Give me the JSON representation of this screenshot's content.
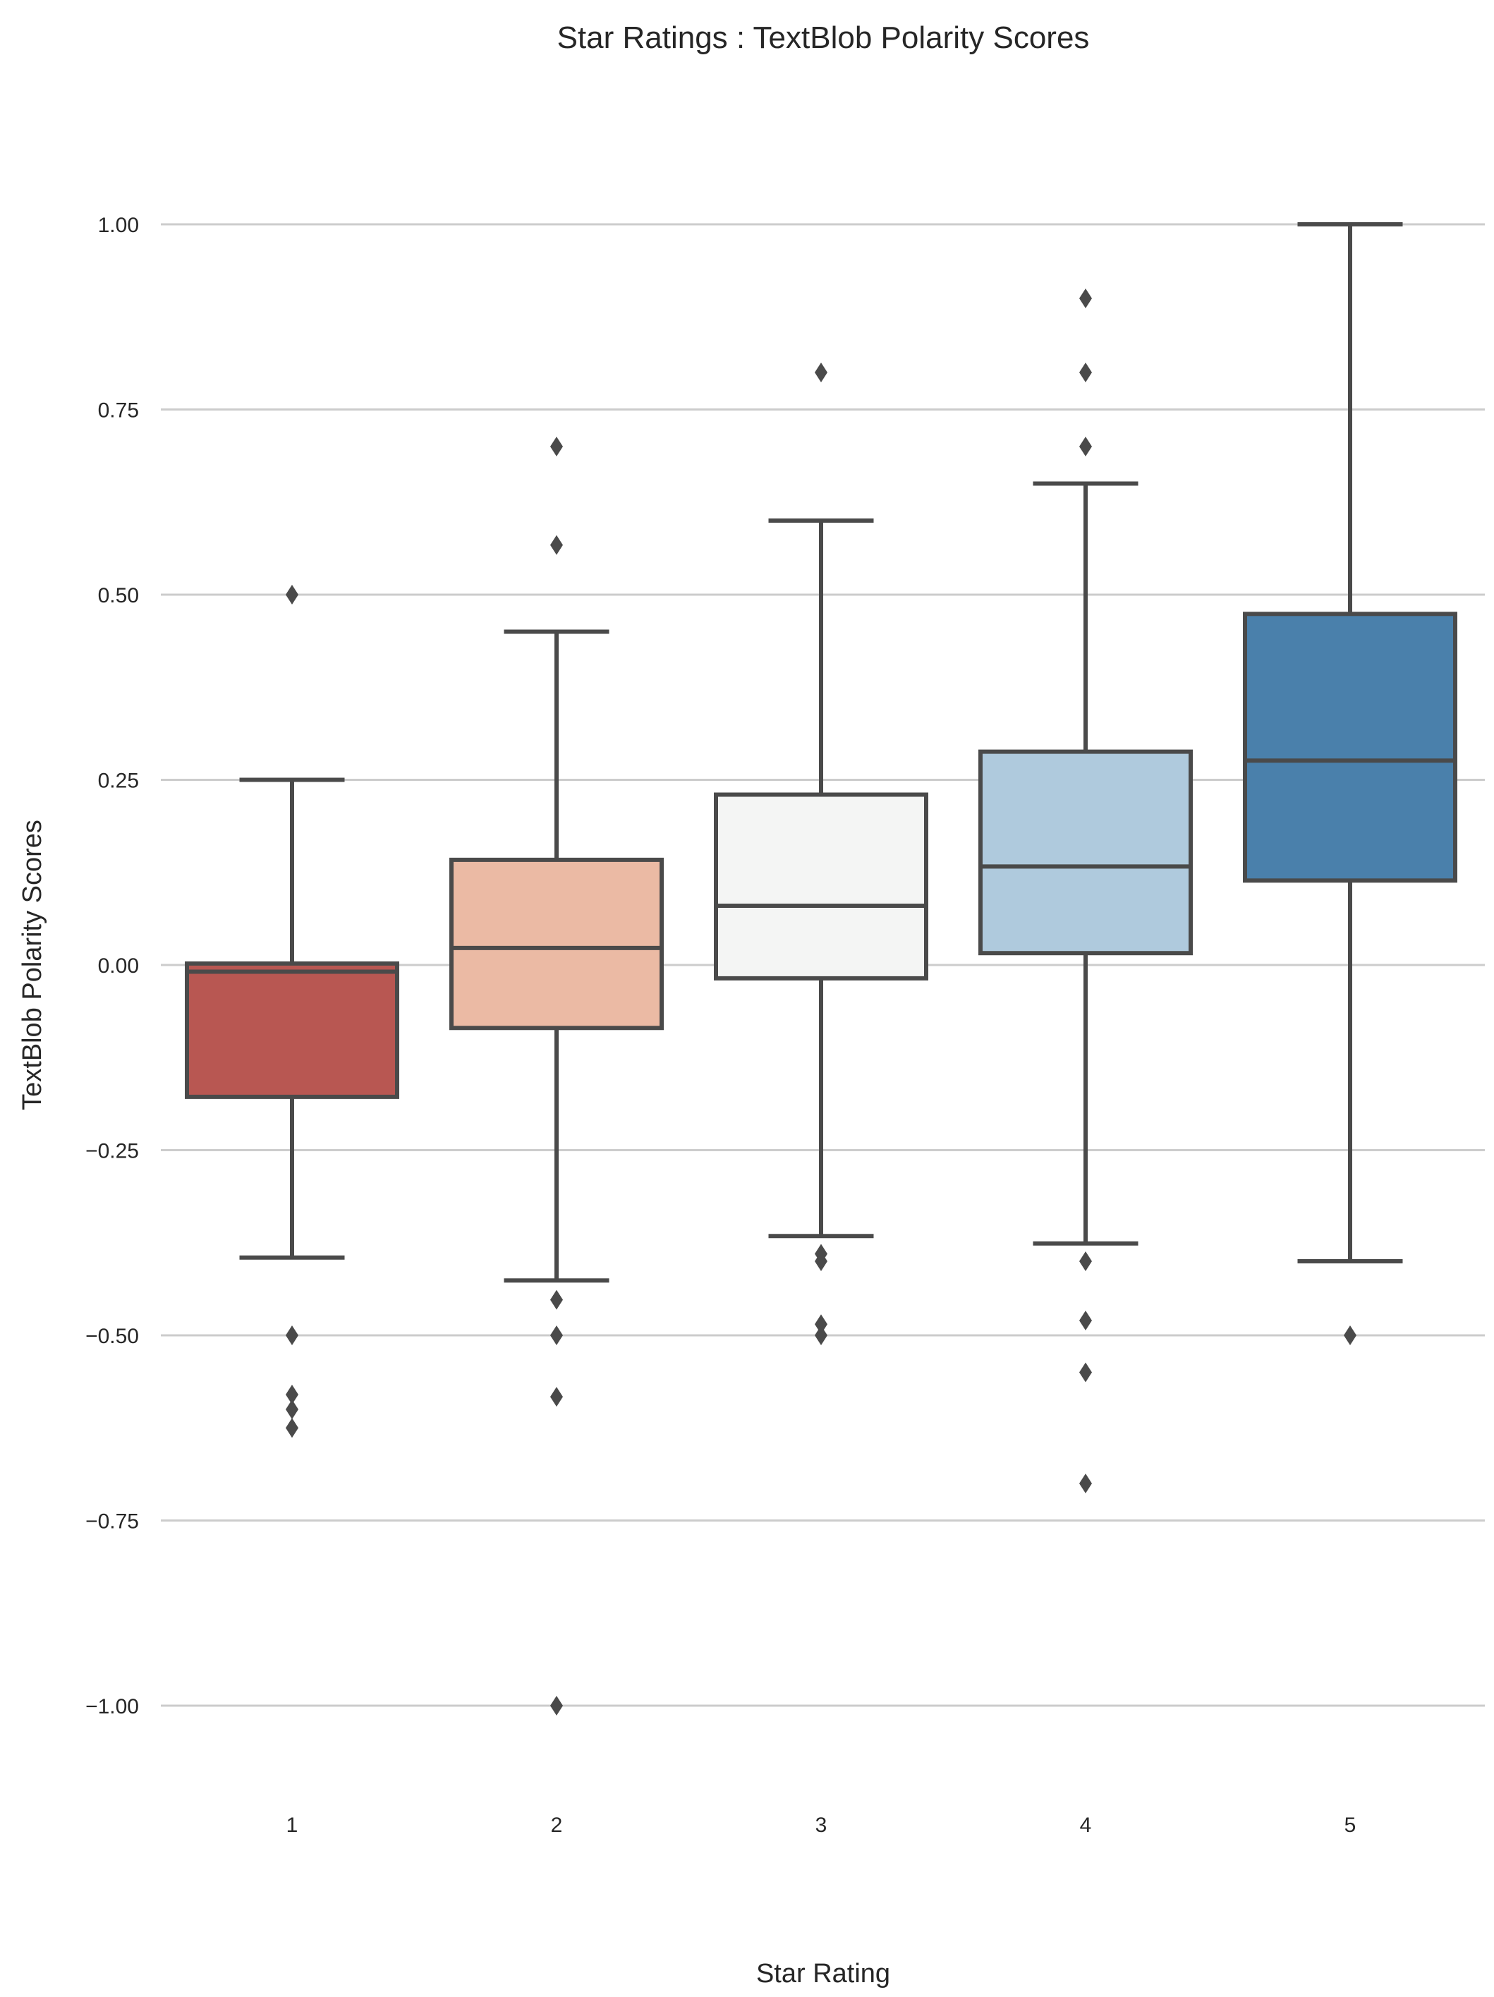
{
  "chart_data": {
    "type": "box",
    "title": "Star Ratings : TextBlob Polarity Scores",
    "xlabel": "Star Rating",
    "ylabel": "TextBlob Polarity Scores",
    "ylim": [
      -1.1,
      1.1
    ],
    "grid": "horizontal",
    "yticks": [
      "1.00",
      "0.75",
      "0.50",
      "0.25",
      "0.00",
      "−0.25",
      "−0.50",
      "−0.75",
      "−1.00"
    ],
    "ytick_values": [
      1.0,
      0.75,
      0.5,
      0.25,
      0.0,
      -0.25,
      -0.5,
      -0.75,
      -1.0
    ],
    "categories": [
      "1",
      "2",
      "3",
      "4",
      "5"
    ],
    "boxes": [
      {
        "category": "1",
        "whislo": -0.395,
        "q1": -0.178,
        "median": -0.009,
        "q3": 0.002,
        "whishi": 0.25,
        "fliers": [
          0.5,
          -0.5,
          -0.58,
          -0.6,
          -0.625
        ],
        "color": "#b85752"
      },
      {
        "category": "2",
        "whislo": -0.426,
        "q1": -0.085,
        "median": 0.023,
        "q3": 0.142,
        "whishi": 0.45,
        "fliers": [
          0.7,
          0.567,
          -0.452,
          -0.5,
          -0.583,
          -1.0
        ],
        "color": "#ebbaa4"
      },
      {
        "category": "3",
        "whislo": -0.366,
        "q1": -0.018,
        "median": 0.08,
        "q3": 0.23,
        "whishi": 0.6,
        "fliers": [
          0.8,
          -0.39,
          -0.4,
          -0.485,
          -0.5
        ],
        "color": "#f4f5f4"
      },
      {
        "category": "4",
        "whislo": -0.376,
        "q1": 0.016,
        "median": 0.133,
        "q3": 0.288,
        "whishi": 0.65,
        "fliers": [
          0.9,
          0.8,
          0.7,
          -0.4,
          -0.48,
          -0.55,
          -0.7
        ],
        "color": "#afcadd"
      },
      {
        "category": "5",
        "whislo": -0.4,
        "q1": 0.114,
        "median": 0.276,
        "q3": 0.474,
        "whishi": 1.0,
        "fliers": [
          -0.5
        ],
        "color": "#4a80ab"
      }
    ],
    "line_color": "#4a4a4a",
    "grid_color": "#cccccc"
  }
}
